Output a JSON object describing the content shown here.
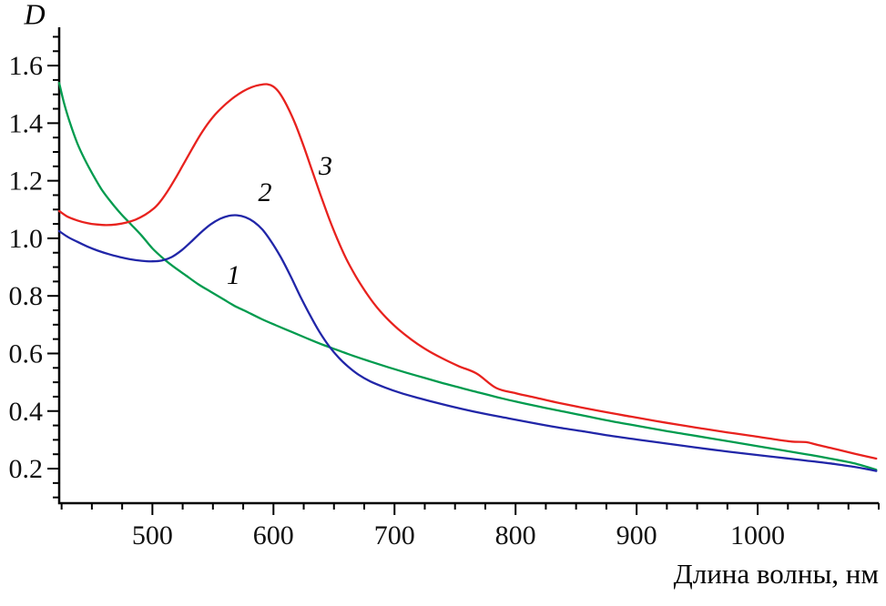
{
  "chart_data": {
    "type": "line",
    "title": "",
    "xlabel": "Длина волны, нм",
    "ylabel": "D",
    "grid": false,
    "legend": "inline-curve-numbers",
    "x_range": [
      423,
      1100
    ],
    "y_range": [
      0.08,
      1.733
    ],
    "x_axis": {
      "major_ticks": [
        500,
        600,
        700,
        800,
        900,
        1000
      ],
      "minor_step": 25
    },
    "y_axis": {
      "major_tick_values": [
        0.2,
        0.4,
        0.6,
        0.8,
        1.0,
        1.2,
        1.4,
        1.6
      ],
      "major_tick_labels": [
        "0.2",
        "0.4",
        "0.6",
        "0.8",
        "1.0",
        "1.2",
        "1.4",
        "1.6"
      ],
      "minor_step": 0.05
    },
    "series": [
      {
        "label": "1",
        "color": "#009b4e",
        "label_x": 567,
        "label_y": 0.87,
        "points": [
          [
            423,
            1.54
          ],
          [
            427,
            1.47
          ],
          [
            432,
            1.4
          ],
          [
            438,
            1.33
          ],
          [
            444,
            1.275
          ],
          [
            451,
            1.22
          ],
          [
            458,
            1.17
          ],
          [
            466,
            1.125
          ],
          [
            474,
            1.085
          ],
          [
            482,
            1.05
          ],
          [
            491,
            1.01
          ],
          [
            500,
            0.965
          ],
          [
            509,
            0.93
          ],
          [
            518,
            0.9
          ],
          [
            528,
            0.87
          ],
          [
            538,
            0.84
          ],
          [
            548,
            0.815
          ],
          [
            558,
            0.79
          ],
          [
            568,
            0.765
          ],
          [
            578,
            0.745
          ],
          [
            590,
            0.72
          ],
          [
            602,
            0.698
          ],
          [
            615,
            0.675
          ],
          [
            628,
            0.652
          ],
          [
            641,
            0.63
          ],
          [
            654,
            0.61
          ],
          [
            667,
            0.59
          ],
          [
            680,
            0.572
          ],
          [
            695,
            0.552
          ],
          [
            710,
            0.533
          ],
          [
            725,
            0.515
          ],
          [
            740,
            0.497
          ],
          [
            755,
            0.48
          ],
          [
            770,
            0.464
          ],
          [
            785,
            0.448
          ],
          [
            800,
            0.433
          ],
          [
            820,
            0.415
          ],
          [
            840,
            0.398
          ],
          [
            860,
            0.381
          ],
          [
            880,
            0.364
          ],
          [
            900,
            0.349
          ],
          [
            920,
            0.334
          ],
          [
            940,
            0.32
          ],
          [
            960,
            0.306
          ],
          [
            980,
            0.292
          ],
          [
            1000,
            0.278
          ],
          [
            1020,
            0.264
          ],
          [
            1040,
            0.25
          ],
          [
            1060,
            0.235
          ],
          [
            1080,
            0.218
          ],
          [
            1098,
            0.196
          ]
        ]
      },
      {
        "label": "2",
        "color": "#2126a8",
        "label_x": 593,
        "label_y": 1.158,
        "points": [
          [
            423,
            1.025
          ],
          [
            430,
            1.005
          ],
          [
            438,
            0.988
          ],
          [
            446,
            0.972
          ],
          [
            455,
            0.957
          ],
          [
            464,
            0.945
          ],
          [
            473,
            0.935
          ],
          [
            482,
            0.927
          ],
          [
            491,
            0.922
          ],
          [
            500,
            0.92
          ],
          [
            508,
            0.923
          ],
          [
            516,
            0.935
          ],
          [
            524,
            0.958
          ],
          [
            532,
            0.988
          ],
          [
            540,
            1.02
          ],
          [
            548,
            1.048
          ],
          [
            556,
            1.068
          ],
          [
            563,
            1.078
          ],
          [
            570,
            1.08
          ],
          [
            577,
            1.073
          ],
          [
            584,
            1.057
          ],
          [
            591,
            1.03
          ],
          [
            598,
            0.99
          ],
          [
            606,
            0.935
          ],
          [
            614,
            0.87
          ],
          [
            622,
            0.8
          ],
          [
            630,
            0.735
          ],
          [
            638,
            0.675
          ],
          [
            646,
            0.625
          ],
          [
            654,
            0.585
          ],
          [
            662,
            0.553
          ],
          [
            670,
            0.527
          ],
          [
            680,
            0.503
          ],
          [
            692,
            0.482
          ],
          [
            705,
            0.463
          ],
          [
            720,
            0.445
          ],
          [
            738,
            0.425
          ],
          [
            756,
            0.407
          ],
          [
            775,
            0.39
          ],
          [
            795,
            0.374
          ],
          [
            815,
            0.358
          ],
          [
            835,
            0.343
          ],
          [
            858,
            0.328
          ],
          [
            880,
            0.313
          ],
          [
            902,
            0.3
          ],
          [
            925,
            0.287
          ],
          [
            948,
            0.274
          ],
          [
            970,
            0.262
          ],
          [
            992,
            0.251
          ],
          [
            1015,
            0.24
          ],
          [
            1038,
            0.229
          ],
          [
            1060,
            0.218
          ],
          [
            1080,
            0.206
          ],
          [
            1098,
            0.192
          ]
        ]
      },
      {
        "label": "3",
        "color": "#e8221e",
        "label_x": 643,
        "label_y": 1.25,
        "points": [
          [
            423,
            1.095
          ],
          [
            430,
            1.075
          ],
          [
            438,
            1.062
          ],
          [
            446,
            1.053
          ],
          [
            454,
            1.048
          ],
          [
            462,
            1.046
          ],
          [
            470,
            1.048
          ],
          [
            478,
            1.054
          ],
          [
            486,
            1.065
          ],
          [
            494,
            1.082
          ],
          [
            501,
            1.103
          ],
          [
            506,
            1.125
          ],
          [
            512,
            1.16
          ],
          [
            519,
            1.208
          ],
          [
            526,
            1.26
          ],
          [
            533,
            1.312
          ],
          [
            540,
            1.362
          ],
          [
            547,
            1.405
          ],
          [
            554,
            1.44
          ],
          [
            561,
            1.468
          ],
          [
            568,
            1.492
          ],
          [
            575,
            1.511
          ],
          [
            582,
            1.525
          ],
          [
            589,
            1.533
          ],
          [
            595,
            1.535
          ],
          [
            600,
            1.527
          ],
          [
            605,
            1.505
          ],
          [
            611,
            1.462
          ],
          [
            618,
            1.398
          ],
          [
            625,
            1.32
          ],
          [
            632,
            1.235
          ],
          [
            639,
            1.15
          ],
          [
            646,
            1.068
          ],
          [
            653,
            0.995
          ],
          [
            660,
            0.93
          ],
          [
            668,
            0.868
          ],
          [
            676,
            0.815
          ],
          [
            684,
            0.768
          ],
          [
            693,
            0.725
          ],
          [
            703,
            0.685
          ],
          [
            714,
            0.648
          ],
          [
            726,
            0.614
          ],
          [
            739,
            0.584
          ],
          [
            753,
            0.556
          ],
          [
            768,
            0.53
          ],
          [
            784,
            0.48
          ],
          [
            800,
            0.462
          ],
          [
            818,
            0.445
          ],
          [
            836,
            0.428
          ],
          [
            855,
            0.412
          ],
          [
            875,
            0.396
          ],
          [
            895,
            0.381
          ],
          [
            915,
            0.366
          ],
          [
            935,
            0.352
          ],
          [
            955,
            0.339
          ],
          [
            975,
            0.326
          ],
          [
            995,
            0.314
          ],
          [
            1012,
            0.303
          ],
          [
            1028,
            0.294
          ],
          [
            1040,
            0.292
          ],
          [
            1050,
            0.282
          ],
          [
            1065,
            0.267
          ],
          [
            1080,
            0.252
          ],
          [
            1098,
            0.235
          ]
        ]
      }
    ]
  }
}
